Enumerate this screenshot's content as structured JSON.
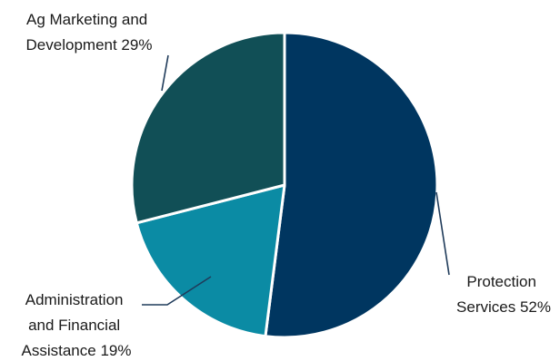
{
  "chart_data": {
    "type": "pie",
    "title": "",
    "slices": [
      {
        "label_lines": [
          "Protection",
          "Services 52%"
        ],
        "value": 52,
        "color": "#003660"
      },
      {
        "label_lines": [
          "Administration",
          "and Financial",
          "Assistance 19%"
        ],
        "value": 19,
        "color": "#0b8ba4"
      },
      {
        "label_lines": [
          "Ag Marketing and",
          "Development 29%"
        ],
        "value": 29,
        "color": "#114f56"
      }
    ],
    "legend": "none",
    "slice_border_color": "#ffffff",
    "leader_line_color": "#1f3b5a"
  }
}
